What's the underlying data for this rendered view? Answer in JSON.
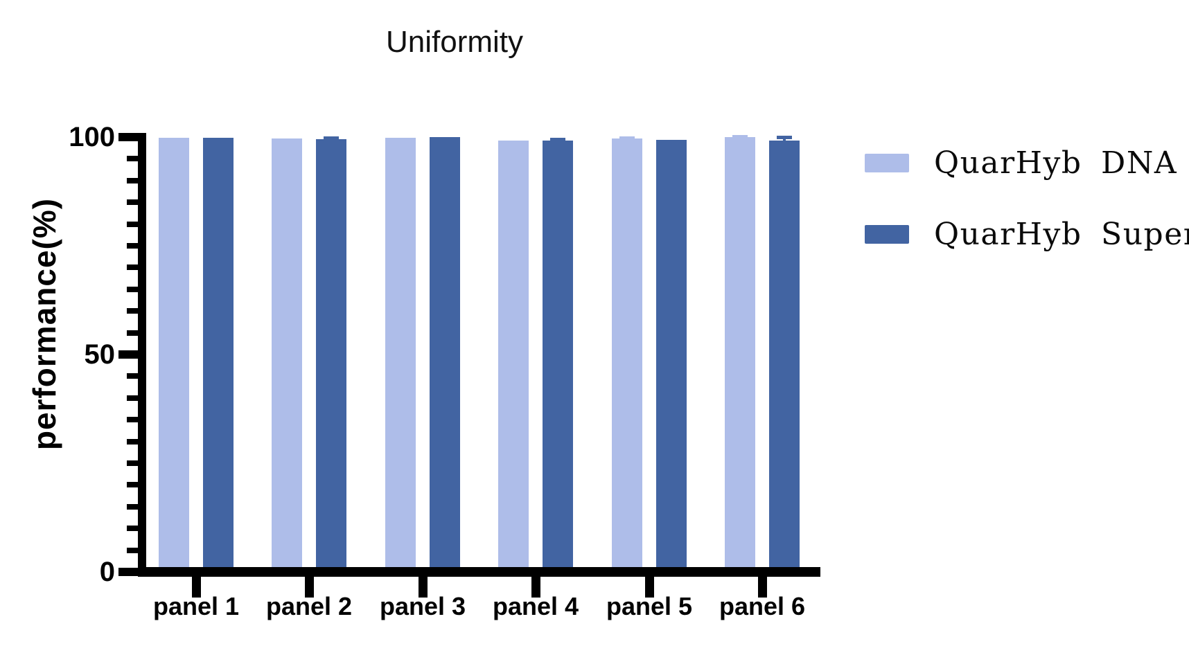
{
  "chart_data": {
    "type": "bar",
    "title": "Uniformity",
    "xlabel": "",
    "ylabel": "performance(%)",
    "categories": [
      "panel 1",
      "panel 2",
      "panel 3",
      "panel 4",
      "panel 5",
      "panel 6"
    ],
    "series": [
      {
        "name": "QuarHyb DNA",
        "color": "#AEBDE9",
        "values": [
          99.8,
          99.7,
          99.9,
          99.2,
          99.7,
          100
        ],
        "errors": [
          0,
          0,
          0,
          0,
          0.2,
          0.2
        ]
      },
      {
        "name": "QuarHyb Super",
        "color": "#4264A2",
        "values": [
          99.9,
          99.5,
          100,
          99.2,
          99.4,
          99.2
        ],
        "errors": [
          0,
          0.4,
          0,
          0.3,
          0,
          0.8
        ]
      }
    ],
    "ylim": [
      0,
      100
    ],
    "yticks": [
      0,
      50,
      100
    ],
    "minor_tick_interval": 5,
    "grid": false,
    "legend_position": "right",
    "axis_color": "#000000",
    "background": "#FFFFFF"
  }
}
